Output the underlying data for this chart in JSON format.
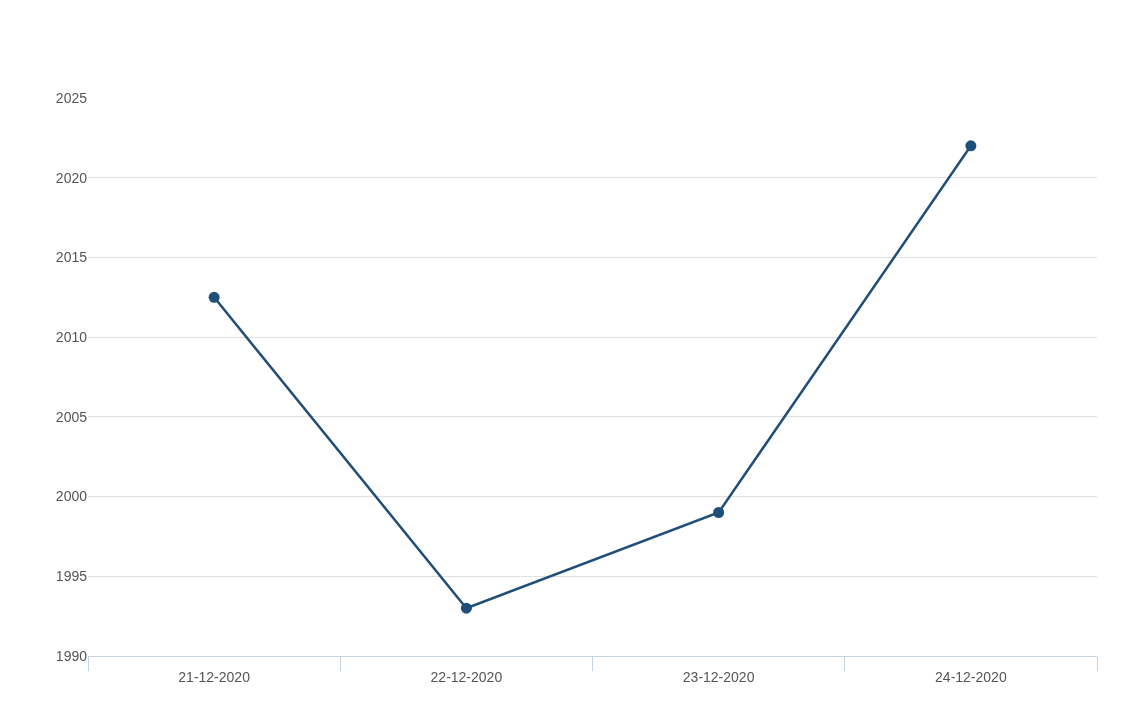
{
  "chart_data": {
    "type": "line",
    "categories": [
      "21-12-2020",
      "22-12-2020",
      "23-12-2020",
      "24-12-2020"
    ],
    "series": [
      {
        "color": "#1f4e79",
        "values": [
          2012.5,
          1993,
          1999,
          2022
        ]
      }
    ],
    "ylim": [
      1990,
      2025
    ],
    "yticks": [
      1990,
      1995,
      2000,
      2005,
      2010,
      2015,
      2020,
      2025
    ],
    "grid": "y",
    "marker": "circle",
    "line_style": "solid"
  }
}
